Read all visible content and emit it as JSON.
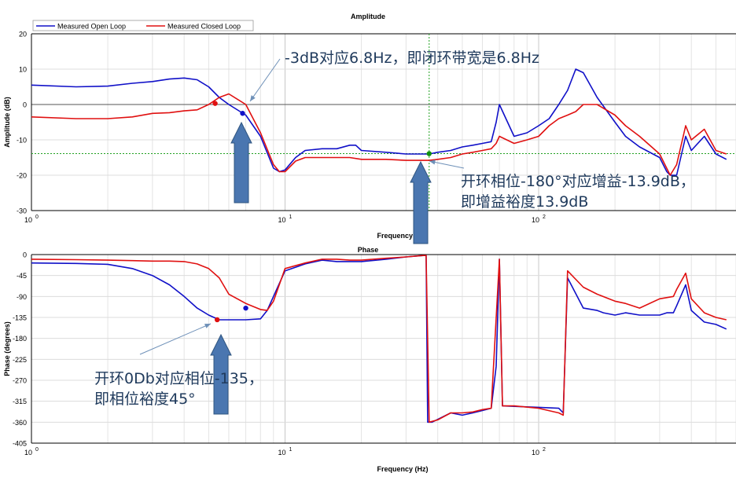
{
  "chart_data": [
    {
      "type": "line",
      "title": "Amplitude",
      "xlabel": "Frequency (Hz)",
      "ylabel": "Amplitude (dB)",
      "xscale": "log",
      "xlim": [
        1,
        600
      ],
      "ylim": [
        -30,
        20
      ],
      "yticks": [
        20,
        10,
        0,
        -10,
        -20,
        -30
      ],
      "xtick_labels": [
        "10",
        "10",
        "10"
      ],
      "xtick_exponents": [
        "0",
        "1",
        "2"
      ],
      "grid": true,
      "legend_position": "top-left",
      "series": [
        {
          "name": "Measured Open Loop",
          "color": "#1010c8",
          "x": [
            1,
            1.5,
            2,
            2.5,
            3,
            3.5,
            4,
            4.5,
            5,
            5.5,
            6,
            7,
            8,
            9,
            9.5,
            10,
            11,
            12,
            14,
            16,
            18,
            19,
            20,
            25,
            30,
            35,
            37,
            40,
            45,
            50,
            55,
            60,
            65,
            68,
            70,
            80,
            90,
            100,
            110,
            120,
            130,
            140,
            150,
            170,
            200,
            220,
            250,
            300,
            320,
            330,
            350,
            380,
            400,
            450,
            500,
            550
          ],
          "y": [
            5.5,
            5,
            5.2,
            6,
            6.5,
            7.2,
            7.5,
            7,
            5,
            2,
            0,
            -3,
            -9,
            -18,
            -19,
            -18.5,
            -15,
            -13,
            -12.5,
            -12.5,
            -11.5,
            -11.5,
            -13,
            -13.5,
            -14,
            -14,
            -14,
            -13.5,
            -13,
            -12,
            -11.5,
            -11,
            -10.5,
            -5,
            0,
            -9,
            -8,
            -6,
            -4,
            0,
            4,
            10,
            9,
            2,
            -5,
            -9,
            -12,
            -15,
            -19,
            -20,
            -20,
            -9,
            -13,
            -9,
            -14,
            -15.5
          ]
        },
        {
          "name": "Measured Closed Loop",
          "color": "#e01010",
          "x": [
            1,
            1.5,
            2,
            2.5,
            3,
            3.5,
            4,
            4.5,
            5,
            5.5,
            6,
            7,
            8,
            9,
            9.5,
            10,
            11,
            12,
            14,
            16,
            18,
            20,
            25,
            30,
            35,
            37,
            40,
            45,
            50,
            55,
            60,
            65,
            68,
            70,
            80,
            90,
            100,
            110,
            120,
            130,
            140,
            150,
            170,
            200,
            220,
            250,
            300,
            330,
            350,
            380,
            400,
            450,
            500,
            550
          ],
          "y": [
            -3.5,
            -4,
            -4,
            -3.5,
            -2.5,
            -2.3,
            -1.8,
            -1.5,
            0,
            2,
            3,
            0,
            -8,
            -17,
            -19,
            -19,
            -16,
            -15,
            -15,
            -15,
            -15,
            -15.5,
            -15.5,
            -15.8,
            -15.8,
            -15.8,
            -15.5,
            -15,
            -14,
            -13.5,
            -13,
            -12.5,
            -11,
            -9,
            -11,
            -10,
            -9,
            -6,
            -4,
            -3,
            -2,
            0,
            0,
            -3,
            -6,
            -9,
            -14,
            -20,
            -17,
            -6,
            -10,
            -7,
            -13,
            -14
          ]
        }
      ],
      "markers": [
        {
          "x": 5.3,
          "y": 0.3,
          "color": "#e01010"
        },
        {
          "x": 6.8,
          "y": -2.5,
          "color": "#1010c8"
        },
        {
          "x": 37,
          "y": -13.9,
          "color": "#109010"
        }
      ],
      "reference_line_y": -13.9,
      "reference_line_x": 37
    },
    {
      "type": "line",
      "title": "Phase",
      "xlabel": "Frequency (Hz)",
      "ylabel": "Phase (degrees)",
      "xscale": "log",
      "xlim": [
        1,
        600
      ],
      "ylim": [
        -405,
        0
      ],
      "yticks": [
        0,
        -45,
        -90,
        -135,
        -180,
        -225,
        -270,
        -315,
        -360,
        -405
      ],
      "xtick_labels": [
        "10",
        "10",
        "10"
      ],
      "xtick_exponents": [
        "0",
        "1",
        "2"
      ],
      "grid": true,
      "series": [
        {
          "name": "Measured Open Loop",
          "color": "#1010c8",
          "x": [
            1,
            1.5,
            2,
            2.5,
            3,
            3.5,
            4,
            4.5,
            5,
            5.5,
            6,
            7,
            8,
            8.5,
            9,
            10,
            12,
            14,
            16,
            18,
            20,
            25,
            30,
            35,
            36,
            36.5,
            38,
            45,
            50,
            55,
            60,
            65,
            68,
            70,
            72,
            80,
            100,
            120,
            125,
            130,
            150,
            170,
            180,
            200,
            220,
            250,
            300,
            320,
            340,
            350,
            380,
            400,
            450,
            500,
            550
          ],
          "y": [
            -18,
            -19,
            -21,
            -30,
            -45,
            -65,
            -90,
            -115,
            -130,
            -140,
            -140,
            -140,
            -138,
            -120,
            -90,
            -35,
            -20,
            -12,
            -15,
            -15,
            -15,
            -10,
            -5,
            -2,
            -2,
            -360,
            -360,
            -340,
            -345,
            -340,
            -335,
            -330,
            -240,
            -10,
            -325,
            -326,
            -328,
            -330,
            -340,
            -50,
            -115,
            -120,
            -125,
            -130,
            -125,
            -130,
            -130,
            -125,
            -125,
            -110,
            -65,
            -120,
            -145,
            -150,
            -160
          ]
        },
        {
          "name": "Measured Closed Loop",
          "color": "#e01010",
          "x": [
            1,
            1.5,
            2,
            2.5,
            3,
            3.5,
            4,
            4.5,
            5,
            5.5,
            6,
            7,
            8,
            8.5,
            9,
            10,
            12,
            14,
            16,
            18,
            20,
            25,
            30,
            35,
            36,
            37,
            40,
            45,
            50,
            55,
            60,
            65,
            70,
            72,
            80,
            100,
            120,
            125,
            130,
            150,
            170,
            200,
            220,
            250,
            300,
            340,
            350,
            380,
            400,
            450,
            500,
            550
          ],
          "y": [
            -10,
            -11,
            -12,
            -13,
            -14,
            -14,
            -15,
            -20,
            -30,
            -50,
            -85,
            -105,
            -118,
            -120,
            -100,
            -30,
            -18,
            -10,
            -10,
            -12,
            -12,
            -8,
            -5,
            -2,
            -2,
            -360,
            -355,
            -340,
            -340,
            -338,
            -333,
            -330,
            -10,
            -325,
            -325,
            -330,
            -340,
            -345,
            -35,
            -70,
            -85,
            -100,
            -105,
            -115,
            -95,
            -90,
            -75,
            -40,
            -95,
            -125,
            -135,
            -140
          ]
        }
      ],
      "markers": [
        {
          "x": 5.4,
          "y": -140,
          "color": "#e01010"
        },
        {
          "x": 7.0,
          "y": -115,
          "color": "#1010c8"
        }
      ]
    }
  ],
  "annotations": {
    "bandwidth": "-3dB对应6.8Hz，即闭环带宽是6.8Hz",
    "gain_margin_line1": "开环相位-180°对应增益-13.9dB，",
    "gain_margin_line2": "即增益裕度13.9dB",
    "phase_margin_line1": "开环0Db对应相位-135，",
    "phase_margin_line2": "即相位裕度45°"
  },
  "arrow_color": "#4a76b0"
}
